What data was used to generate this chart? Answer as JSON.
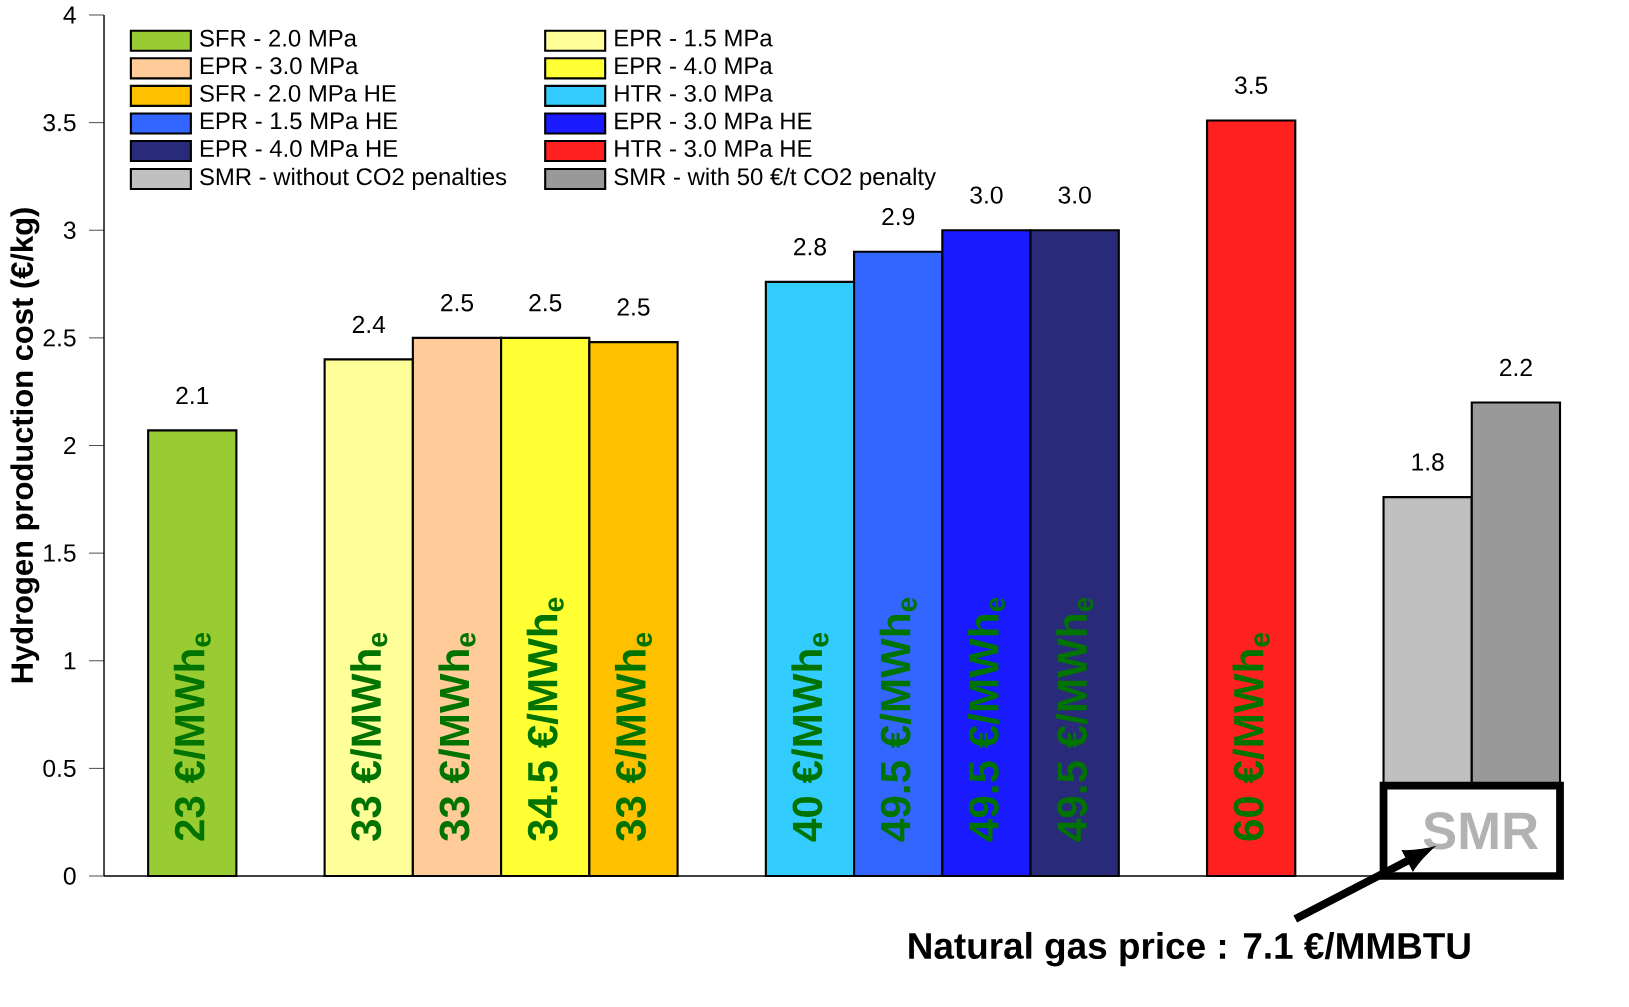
{
  "chart_data": {
    "type": "bar",
    "ylabel": "Hydrogen production cost (€/kg)",
    "categories": [
      null,
      null,
      null,
      null,
      null,
      null,
      null,
      null,
      null,
      null,
      null,
      null,
      null,
      null,
      null,
      null
    ],
    "series": [
      {
        "name": "SFR - 2.0 MPa",
        "color": "#99cc33",
        "values": [
          2.07,
          null,
          null,
          null,
          null,
          null,
          null,
          null,
          null,
          null,
          null,
          null,
          null,
          null,
          null,
          null
        ],
        "value_labels": [
          "2.1",
          null,
          null,
          null,
          null,
          null,
          null,
          null,
          null,
          null,
          null,
          null,
          null,
          null,
          null,
          null
        ]
      },
      {
        "name": "EPR - 1.5 MPa",
        "color": "#ffff99",
        "values": [
          null,
          null,
          2.4,
          null,
          null,
          null,
          null,
          null,
          null,
          null,
          null,
          null,
          null,
          null,
          null,
          null
        ],
        "value_labels": [
          null,
          null,
          "2.4",
          null,
          null,
          null,
          null,
          null,
          null,
          null,
          null,
          null,
          null,
          null,
          null,
          null
        ]
      },
      {
        "name": "EPR - 3.0 MPa",
        "color": "#ffcc99",
        "values": [
          null,
          null,
          null,
          2.5,
          null,
          null,
          null,
          null,
          null,
          null,
          null,
          null,
          null,
          null,
          null,
          null
        ],
        "value_labels": [
          null,
          null,
          null,
          "2.5",
          null,
          null,
          null,
          null,
          null,
          null,
          null,
          null,
          null,
          null,
          null,
          null
        ]
      },
      {
        "name": "EPR - 4.0 MPa",
        "color": "#ffff33",
        "values": [
          null,
          null,
          null,
          null,
          2.5,
          null,
          null,
          null,
          null,
          null,
          null,
          null,
          null,
          null,
          null,
          null
        ],
        "value_labels": [
          null,
          null,
          null,
          null,
          "2.5",
          null,
          null,
          null,
          null,
          null,
          null,
          null,
          null,
          null,
          null,
          null
        ]
      },
      {
        "name": "SFR - 2.0 MPa HE",
        "color": "#ffc000",
        "values": [
          null,
          null,
          null,
          null,
          null,
          2.48,
          null,
          null,
          null,
          null,
          null,
          null,
          null,
          null,
          null,
          null
        ],
        "value_labels": [
          null,
          null,
          null,
          null,
          null,
          "2.5",
          null,
          null,
          null,
          null,
          null,
          null,
          null,
          null,
          null,
          null
        ]
      },
      {
        "name": "HTR - 3.0 MPa",
        "color": "#33ccff",
        "values": [
          null,
          null,
          null,
          null,
          null,
          null,
          null,
          2.76,
          null,
          null,
          null,
          null,
          null,
          null,
          null,
          null
        ],
        "value_labels": [
          null,
          null,
          null,
          null,
          null,
          null,
          null,
          "2.8",
          null,
          null,
          null,
          null,
          null,
          null,
          null,
          null
        ]
      },
      {
        "name": "EPR - 1.5 MPa HE",
        "color": "#3366ff",
        "values": [
          null,
          null,
          null,
          null,
          null,
          null,
          null,
          null,
          2.9,
          null,
          null,
          null,
          null,
          null,
          null,
          null
        ],
        "value_labels": [
          null,
          null,
          null,
          null,
          null,
          null,
          null,
          null,
          "2.9",
          null,
          null,
          null,
          null,
          null,
          null,
          null
        ]
      },
      {
        "name": "EPR - 3.0 MPa HE",
        "color": "#1a1aff",
        "values": [
          null,
          null,
          null,
          null,
          null,
          null,
          null,
          null,
          null,
          3.0,
          null,
          null,
          null,
          null,
          null,
          null
        ],
        "value_labels": [
          null,
          null,
          null,
          null,
          null,
          null,
          null,
          null,
          null,
          "3.0",
          null,
          null,
          null,
          null,
          null,
          null
        ]
      },
      {
        "name": "EPR - 4.0 MPa HE",
        "color": "#2a2a7a",
        "values": [
          null,
          null,
          null,
          null,
          null,
          null,
          null,
          null,
          null,
          null,
          3.0,
          null,
          null,
          null,
          null,
          null
        ],
        "value_labels": [
          null,
          null,
          null,
          null,
          null,
          null,
          null,
          null,
          null,
          null,
          "3.0",
          null,
          null,
          null,
          null,
          null
        ]
      },
      {
        "name": "HTR - 3.0 MPa HE",
        "color": "#ff2020",
        "values": [
          null,
          null,
          null,
          null,
          null,
          null,
          null,
          null,
          null,
          null,
          null,
          null,
          3.51,
          null,
          null,
          null
        ],
        "value_labels": [
          null,
          null,
          null,
          null,
          null,
          null,
          null,
          null,
          null,
          null,
          null,
          null,
          "3.5",
          null,
          null,
          null
        ]
      },
      {
        "name": "SMR - without CO2 penalties",
        "color": "#c0c0c0",
        "values": [
          null,
          null,
          null,
          null,
          null,
          null,
          null,
          null,
          null,
          null,
          null,
          null,
          null,
          null,
          1.76,
          null
        ],
        "value_labels": [
          null,
          null,
          null,
          null,
          null,
          null,
          null,
          null,
          null,
          null,
          null,
          null,
          null,
          null,
          "1.8",
          null
        ]
      },
      {
        "name": "SMR - with 50 €/t CO2 penalty",
        "color": "#999999",
        "values": [
          null,
          null,
          null,
          null,
          null,
          null,
          null,
          null,
          null,
          null,
          null,
          null,
          null,
          null,
          null,
          2.2
        ],
        "value_labels": [
          null,
          null,
          null,
          null,
          null,
          null,
          null,
          null,
          null,
          null,
          null,
          null,
          null,
          null,
          null,
          "2.2"
        ]
      }
    ],
    "annotations": [
      "23 €/MWh$_{e}$",
      "33 €/MWh$_{e}$",
      "33 €/MWh$_{e}$",
      "34.5 €/MWh$_{e}$",
      "33 €/MWh$_{e}$",
      "40 €/MWh$_{e}$",
      "49.5 €/MWh$_{e}$",
      "49.5 €/MWh$_{e}$",
      "49.5 €/MWh$_{e}$",
      "60 €/MWh$_{e}$",
      "SMR",
      "Natural gas price : 7.1 €/MMBTU"
    ],
    "ylim": [
      0,
      4
    ],
    "yticks": [
      0,
      0.5,
      1,
      1.5,
      2,
      2.5,
      3,
      3.5,
      4
    ],
    "legend": "top left",
    "grid": false
  }
}
